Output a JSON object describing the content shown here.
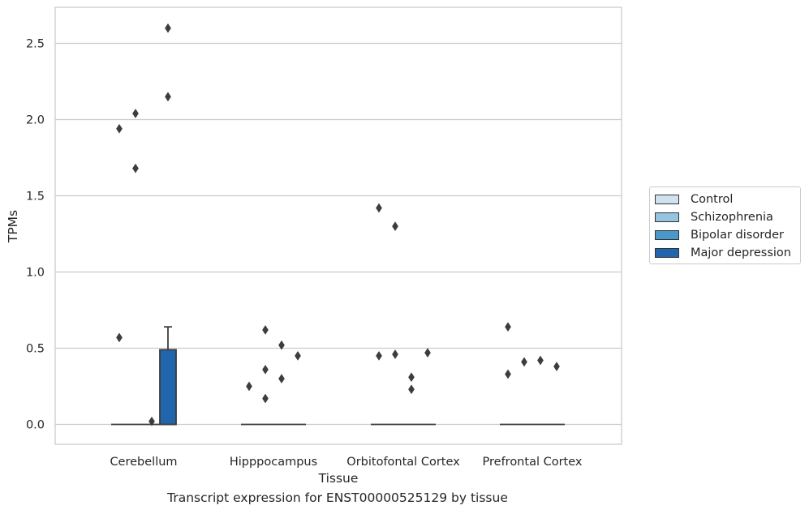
{
  "chart_data": {
    "type": "box",
    "caption": "Transcript expression for ENST00000525129 by tissue",
    "xlabel": "Tissue",
    "ylabel": "TPMs",
    "ylim": [
      -0.13,
      2.73
    ],
    "yticks": [
      0.0,
      0.5,
      1.0,
      1.5,
      2.0,
      2.5
    ],
    "ytick_labels": [
      "0.0",
      "0.5",
      "1.0",
      "1.5",
      "2.0",
      "2.5"
    ],
    "categories": [
      "Cerebellum",
      "Hipppocampus",
      "Orbitofontal Cortex",
      "Prefrontal Cortex"
    ],
    "grid": true,
    "legend_position": "right",
    "series": [
      {
        "name": "Control",
        "color": "#d0e1f2",
        "boxes": [
          {
            "q1": 0,
            "median": 0,
            "q3": 0,
            "whisker_low": 0,
            "whisker_high": 0,
            "outliers": [
              0.57,
              1.94
            ]
          },
          {
            "q1": 0,
            "median": 0,
            "q3": 0,
            "whisker_low": 0,
            "whisker_high": 0,
            "outliers": [
              0.25
            ]
          },
          {
            "q1": 0,
            "median": 0,
            "q3": 0,
            "whisker_low": 0,
            "whisker_high": 0,
            "outliers": [
              0.45,
              1.42
            ]
          },
          {
            "q1": 0,
            "median": 0,
            "q3": 0,
            "whisker_low": 0,
            "whisker_high": 0,
            "outliers": [
              0.33,
              0.64
            ]
          }
        ]
      },
      {
        "name": "Schizophrenia",
        "color": "#94c4df",
        "boxes": [
          {
            "q1": 0,
            "median": 0,
            "q3": 0,
            "whisker_low": 0,
            "whisker_high": 0,
            "outliers": [
              1.68,
              2.04
            ]
          },
          {
            "q1": 0,
            "median": 0,
            "q3": 0,
            "whisker_low": 0,
            "whisker_high": 0,
            "outliers": [
              0.17,
              0.36,
              0.62
            ]
          },
          {
            "q1": 0,
            "median": 0,
            "q3": 0,
            "whisker_low": 0,
            "whisker_high": 0,
            "outliers": [
              0.46,
              1.3
            ]
          },
          {
            "q1": 0,
            "median": 0,
            "q3": 0,
            "whisker_low": 0,
            "whisker_high": 0,
            "outliers": [
              0.41
            ]
          }
        ]
      },
      {
        "name": "Bipolar disorder",
        "color": "#4a98c9",
        "boxes": [
          {
            "q1": 0,
            "median": 0,
            "q3": 0,
            "whisker_low": 0,
            "whisker_high": 0,
            "outliers": [
              0.02
            ]
          },
          {
            "q1": 0,
            "median": 0,
            "q3": 0,
            "whisker_low": 0,
            "whisker_high": 0,
            "outliers": [
              0.3,
              0.52
            ]
          },
          {
            "q1": 0,
            "median": 0,
            "q3": 0,
            "whisker_low": 0,
            "whisker_high": 0,
            "outliers": [
              0.23,
              0.31
            ]
          },
          {
            "q1": 0,
            "median": 0,
            "q3": 0,
            "whisker_low": 0,
            "whisker_high": 0,
            "outliers": [
              0.42
            ]
          }
        ]
      },
      {
        "name": "Major depression",
        "color": "#2166ac",
        "boxes": [
          {
            "q1": 0,
            "median": 0,
            "q3": 0.49,
            "whisker_low": 0,
            "whisker_high": 0.64,
            "outliers": [
              2.15,
              2.6
            ]
          },
          {
            "q1": 0,
            "median": 0,
            "q3": 0,
            "whisker_low": 0,
            "whisker_high": 0,
            "outliers": [
              0.45
            ]
          },
          {
            "q1": 0,
            "median": 0,
            "q3": 0,
            "whisker_low": 0,
            "whisker_high": 0,
            "outliers": [
              0.47
            ]
          },
          {
            "q1": 0,
            "median": 0,
            "q3": 0,
            "whisker_low": 0,
            "whisker_high": 0,
            "outliers": [
              0.38
            ]
          }
        ]
      }
    ]
  }
}
